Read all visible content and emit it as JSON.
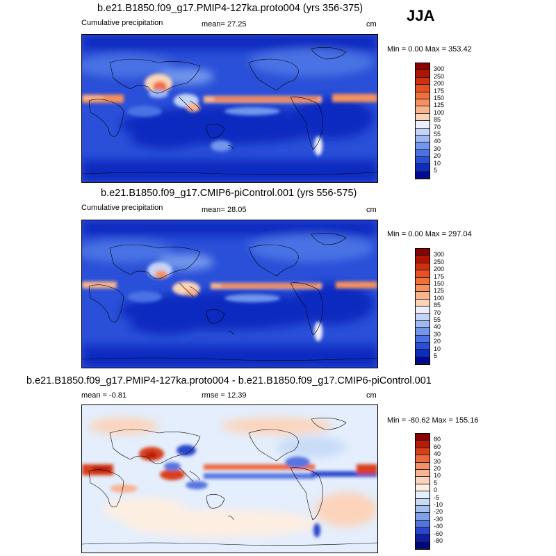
{
  "season": "JJA",
  "panels": [
    {
      "id": "proto004",
      "title": "b.e21.B1850.f09_g17.PMIP4-127ka.proto004 (yrs 356-375)",
      "left_label": "Cumulative precipitation",
      "mid_label": "mean=  27.25",
      "units": "cm",
      "minmax": "Min =   0.00 Max = 353.42",
      "levels": [
        "300",
        "250",
        "200",
        "175",
        "150",
        "125",
        "100",
        "85",
        "70",
        "55",
        "40",
        "30",
        "20",
        "10",
        "5"
      ],
      "colors": [
        "#8b0000",
        "#b11400",
        "#d03010",
        "#e85024",
        "#f0703c",
        "#f4915e",
        "#f8b48c",
        "#fbd4b8",
        "#eeeefa",
        "#c4d4f6",
        "#9db8f2",
        "#7196ec",
        "#4a72e4",
        "#2a4fd8",
        "#0d2cc0",
        "#000a96"
      ]
    },
    {
      "id": "picontrol",
      "title": "b.e21.B1850.f09_g17.CMIP6-piControl.001 (yrs 556-575)",
      "left_label": "Cumulative precipitation",
      "mid_label": "mean=  28.05",
      "units": "cm",
      "minmax": "Min =   0.00 Max = 297.04",
      "levels": [
        "300",
        "250",
        "200",
        "175",
        "150",
        "125",
        "100",
        "85",
        "70",
        "55",
        "40",
        "30",
        "20",
        "10",
        "5"
      ],
      "colors": [
        "#8b0000",
        "#b11400",
        "#d03010",
        "#e85024",
        "#f0703c",
        "#f4915e",
        "#f8b48c",
        "#fbd4b8",
        "#eeeefa",
        "#c4d4f6",
        "#9db8f2",
        "#7196ec",
        "#4a72e4",
        "#2a4fd8",
        "#0d2cc0",
        "#000a96"
      ]
    },
    {
      "id": "difference",
      "title": "b.e21.B1850.f09_g17.PMIP4-127ka.proto004 - b.e21.B1850.f09_g17.CMIP6-piControl.001",
      "left_label": "mean =  -0.81",
      "mid_label": "rmse =  12.39",
      "units": "cm",
      "minmax": "Min = -80.62 Max = 155.16",
      "levels": [
        "80",
        "60",
        "40",
        "30",
        "20",
        "10",
        "5",
        "0",
        "-5",
        "-10",
        "-20",
        "-30",
        "-40",
        "-60",
        "-80"
      ],
      "colors": [
        "#8b0000",
        "#b81c08",
        "#d8401c",
        "#ec6a40",
        "#f49068",
        "#f8b494",
        "#fcd4bc",
        "#fdeee2",
        "#e4eefc",
        "#c8dcf8",
        "#a4c2f2",
        "#7ea2ea",
        "#5474e0",
        "#2c46cc",
        "#0c1ea6",
        "#00087a"
      ]
    }
  ],
  "chart_data": [
    {
      "type": "heatmap",
      "title": "b.e21.B1850.f09_g17.PMIP4-127ka.proto004 (yrs 356-375)",
      "subtitle": "Cumulative precipitation",
      "units": "cm",
      "mean": 27.25,
      "min": 0.0,
      "max": 353.42,
      "season": "JJA",
      "colorbar_levels": [
        5,
        10,
        20,
        30,
        40,
        55,
        70,
        85,
        100,
        125,
        150,
        175,
        200,
        250,
        300
      ],
      "legend": "right",
      "grid": false
    },
    {
      "type": "heatmap",
      "title": "b.e21.B1850.f09_g17.CMIP6-piControl.001 (yrs 556-575)",
      "subtitle": "Cumulative precipitation",
      "units": "cm",
      "mean": 28.05,
      "min": 0.0,
      "max": 297.04,
      "season": "JJA",
      "colorbar_levels": [
        5,
        10,
        20,
        30,
        40,
        55,
        70,
        85,
        100,
        125,
        150,
        175,
        200,
        250,
        300
      ],
      "legend": "right",
      "grid": false
    },
    {
      "type": "heatmap",
      "title": "b.e21.B1850.f09_g17.PMIP4-127ka.proto004 - b.e21.B1850.f09_g17.CMIP6-piControl.001",
      "units": "cm",
      "mean": -0.81,
      "rmse": 12.39,
      "min": -80.62,
      "max": 155.16,
      "season": "JJA",
      "colorbar_levels": [
        -80,
        -60,
        -40,
        -30,
        -20,
        -10,
        -5,
        0,
        5,
        10,
        20,
        30,
        40,
        60,
        80
      ],
      "legend": "right",
      "grid": false
    }
  ]
}
